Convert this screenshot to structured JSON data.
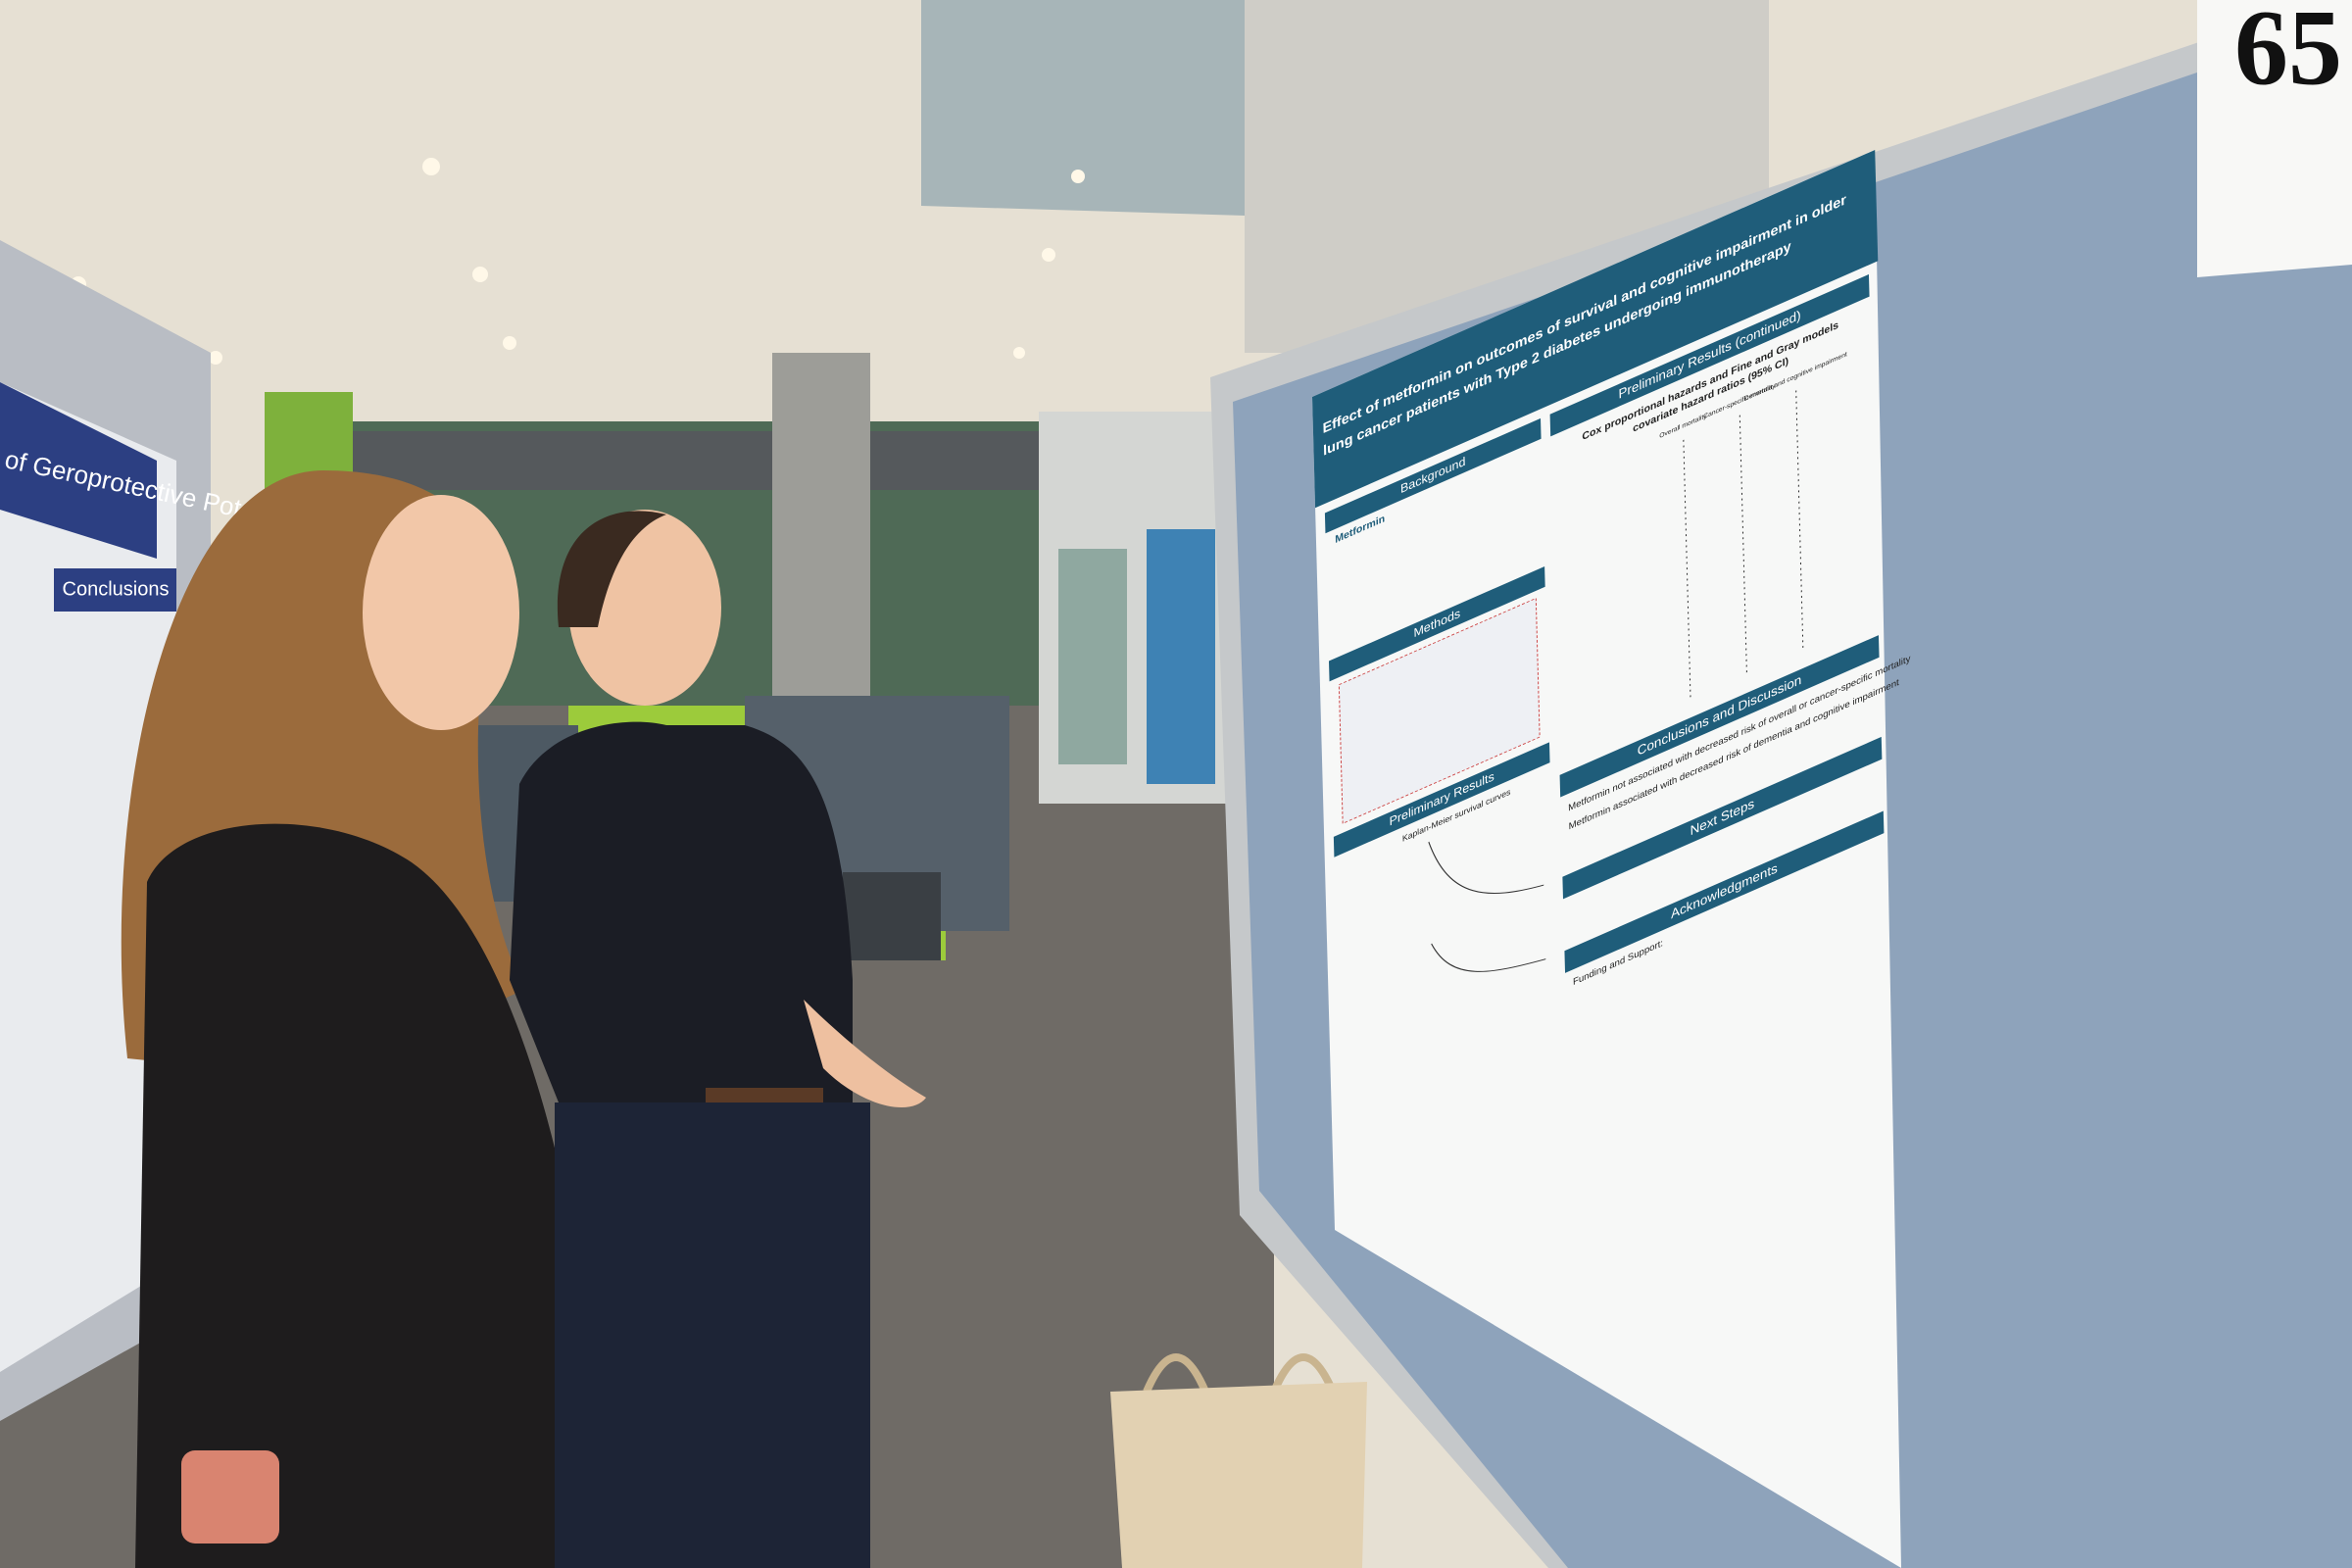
{
  "booth_number": "65",
  "left_poster": {
    "heading": "of Geroprotective Potential",
    "section": "Conclusions"
  },
  "right_poster": {
    "title_lines": [
      "Effect of metformin on outcomes of survival and cognitive impairment in older",
      "lung cancer patients with Type 2 diabetes undergoing immunotherapy"
    ],
    "background": "Background",
    "metformin": "Metformin",
    "methods": "Methods",
    "preliminary_results": "Preliminary Results",
    "km_curves": "Kaplan-Meier survival curves",
    "results_continued": "Preliminary Results (continued)",
    "model_title_lines": [
      "Cox proportional hazards and Fine and Gray models",
      "covariate hazard ratios (95% CI)"
    ],
    "columns": [
      "Overall mortality",
      "Cancer-specific mortality",
      "Dementia and cognitive impairment"
    ],
    "conclusions": "Conclusions and Discussion",
    "conclusion_points": [
      "Metformin not associated with decreased risk of overall or cancer-specific mortality",
      "Metformin associated with decreased risk of dementia and cognitive impairment"
    ],
    "next_steps": "Next Steps",
    "acknowledgments": "Acknowledgments",
    "funding": "Funding and Support:"
  }
}
